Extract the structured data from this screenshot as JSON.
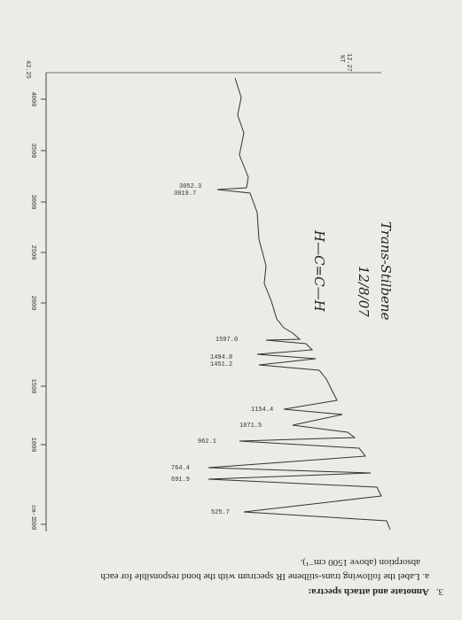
{
  "question": {
    "number": "3.",
    "heading": "Annotate and attach spectra:",
    "item": "a. Label the following trans-stilbene IR spectrum with the bond responsible for each",
    "item_cont": "absorption (above 1500 cm⁻¹)."
  },
  "handwriting": {
    "title": "Trans-Stilbene",
    "date": "12/8/07"
  },
  "spectrum": {
    "y_top": "12.27",
    "y_unit": "%T",
    "y_bottom": "42.25",
    "x_ticks": [
      "4000",
      "3500",
      "3000",
      "2500",
      "2000",
      "1500",
      "1000",
      "500"
    ],
    "x_unit": "cm-1",
    "peaks": [
      "3052.3",
      "3019.7",
      "1597.0",
      "1494.8",
      "1451.2",
      "1154.4",
      "1071.5",
      "962.1",
      "764.4",
      "691.9",
      "525.7"
    ]
  }
}
